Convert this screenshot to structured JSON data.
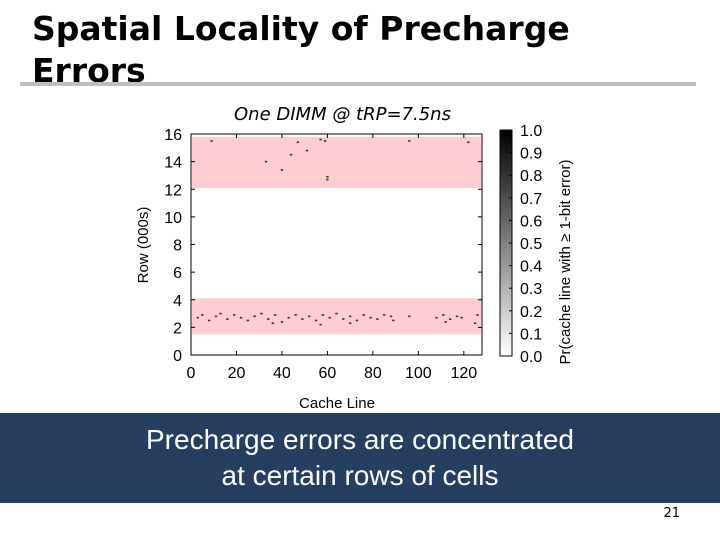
{
  "slide": {
    "title_line1": "Spatial Locality of Precharge",
    "title_line2": "Errors",
    "callout_line1": "Precharge errors are concentrated",
    "callout_line2": "at certain rows of cells",
    "page_number": "21"
  },
  "colors": {
    "band_fill": "#ffcdd2",
    "callout_bg": "#243f60",
    "title_rule": "#bfbfbf"
  },
  "chart_data": {
    "type": "heatmap",
    "title": "One DIMM @ tRP=7.5ns",
    "xlabel": "Cache Line",
    "ylabel": "Row (000s)",
    "colorbar_label": "Pr(cache line with ≥ 1-bit error)",
    "xlim": [
      0,
      128
    ],
    "ylim": [
      0,
      16
    ],
    "xticks": [
      0,
      20,
      40,
      60,
      80,
      100,
      120
    ],
    "yticks": [
      0,
      2,
      4,
      6,
      8,
      10,
      12,
      14,
      16
    ],
    "colorbar_ticks": [
      "0.0",
      "0.1",
      "0.2",
      "0.3",
      "0.4",
      "0.5",
      "0.6",
      "0.7",
      "0.8",
      "0.9",
      "1.0"
    ],
    "colorbar_range": [
      0.0,
      1.0
    ],
    "grid": false,
    "highlight_bands_rows": [
      [
        1.5,
        4.1
      ],
      [
        12.1,
        15.8
      ]
    ],
    "points": [
      {
        "x": 3,
        "y": 2.7
      },
      {
        "x": 5,
        "y": 2.9
      },
      {
        "x": 8,
        "y": 2.5
      },
      {
        "x": 11,
        "y": 2.8
      },
      {
        "x": 13,
        "y": 3.0
      },
      {
        "x": 16,
        "y": 2.6
      },
      {
        "x": 19,
        "y": 2.9
      },
      {
        "x": 22,
        "y": 2.7
      },
      {
        "x": 25,
        "y": 2.5
      },
      {
        "x": 28,
        "y": 2.8
      },
      {
        "x": 31,
        "y": 3.0
      },
      {
        "x": 34,
        "y": 2.6
      },
      {
        "x": 37,
        "y": 2.9
      },
      {
        "x": 40,
        "y": 2.4
      },
      {
        "x": 43,
        "y": 2.7
      },
      {
        "x": 46,
        "y": 2.9
      },
      {
        "x": 49,
        "y": 2.6
      },
      {
        "x": 52,
        "y": 2.8
      },
      {
        "x": 55,
        "y": 2.5
      },
      {
        "x": 58,
        "y": 2.9
      },
      {
        "x": 61,
        "y": 2.7
      },
      {
        "x": 64,
        "y": 3.0
      },
      {
        "x": 67,
        "y": 2.6
      },
      {
        "x": 70,
        "y": 2.8
      },
      {
        "x": 73,
        "y": 2.5
      },
      {
        "x": 76,
        "y": 2.9
      },
      {
        "x": 79,
        "y": 2.7
      },
      {
        "x": 82,
        "y": 2.6
      },
      {
        "x": 85,
        "y": 2.9
      },
      {
        "x": 88,
        "y": 2.8
      },
      {
        "x": 96,
        "y": 2.8
      },
      {
        "x": 108,
        "y": 2.7
      },
      {
        "x": 111,
        "y": 2.9
      },
      {
        "x": 114,
        "y": 2.6
      },
      {
        "x": 117,
        "y": 2.8
      },
      {
        "x": 119,
        "y": 2.7
      },
      {
        "x": 126,
        "y": 2.9
      },
      {
        "x": 36,
        "y": 2.3
      },
      {
        "x": 57,
        "y": 2.2
      },
      {
        "x": 70,
        "y": 2.3
      },
      {
        "x": 89,
        "y": 2.5
      },
      {
        "x": 112,
        "y": 2.4
      },
      {
        "x": 125,
        "y": 2.3
      },
      {
        "x": 9,
        "y": 15.5
      },
      {
        "x": 47,
        "y": 15.4
      },
      {
        "x": 57,
        "y": 15.6
      },
      {
        "x": 59,
        "y": 15.5
      },
      {
        "x": 96,
        "y": 15.5
      },
      {
        "x": 122,
        "y": 15.4
      },
      {
        "x": 44,
        "y": 14.5
      },
      {
        "x": 33,
        "y": 14.0
      },
      {
        "x": 40,
        "y": 13.4
      },
      {
        "x": 60,
        "y": 12.9
      },
      {
        "x": 60,
        "y": 12.7
      },
      {
        "x": 51,
        "y": 14.8
      }
    ]
  }
}
